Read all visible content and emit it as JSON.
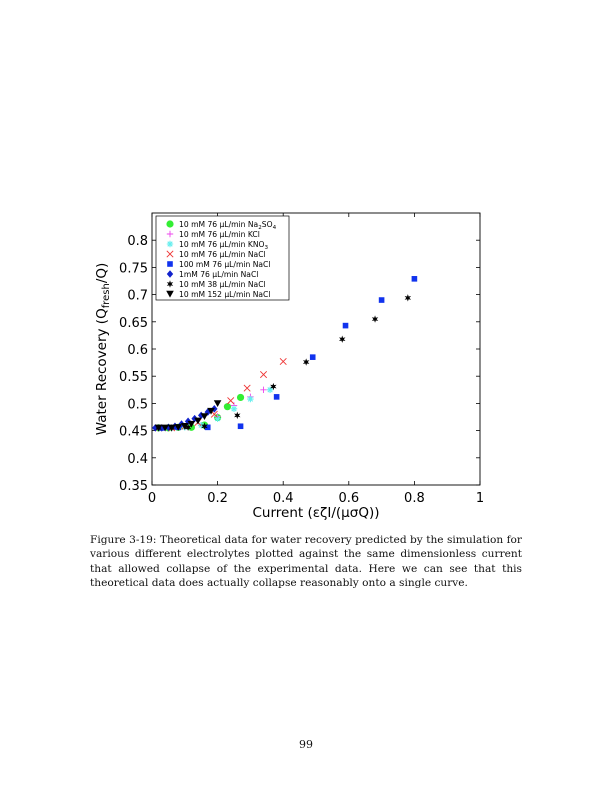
{
  "figure": {
    "caption": "Figure 3-19: Theoretical data for water recovery predicted by the simulation for various different electrolytes plotted against the same dimensionless current that allowed collapse of the experimental data. Here we can see that this theoretical data does actually collapse reasonably onto a single curve."
  },
  "page_number": "99",
  "chart_data": {
    "type": "scatter",
    "xlabel": "Current (εζI/(μσQ))",
    "ylabel_main": "Water Recovery (Q",
    "ylabel_sub": "fresh",
    "ylabel_tail": "/Q)",
    "xlim": [
      0,
      1
    ],
    "ylim": [
      0.35,
      0.85
    ],
    "x_ticks": [
      0,
      0.2,
      0.4,
      0.6,
      0.8,
      1
    ],
    "x_tick_labels": [
      "0",
      "0.2",
      "0.4",
      "0.6",
      "0.8",
      "1"
    ],
    "y_ticks": [
      0.35,
      0.4,
      0.45,
      0.5,
      0.55,
      0.6,
      0.65,
      0.7,
      0.75,
      0.8
    ],
    "y_tick_labels": [
      "0.35",
      "0.4",
      "0.45",
      "0.5",
      "0.55",
      "0.6",
      "0.65",
      "0.7",
      "0.75",
      "0.8"
    ],
    "grid": false,
    "legend_position": "top-left",
    "series": [
      {
        "name": "10 mM 76 μL/min Na2SO4",
        "label_main": "10 mM 76 μL/min Na",
        "label_sub": "2",
        "label_tail": "SO",
        "label_sub2": "4",
        "marker": "circle",
        "color": "#33ee33",
        "x": [
          0.02,
          0.05,
          0.08,
          0.12,
          0.16,
          0.2,
          0.23,
          0.27
        ],
        "y": [
          0.455,
          0.455,
          0.456,
          0.456,
          0.46,
          0.474,
          0.494,
          0.511
        ]
      },
      {
        "name": "10 mM 76 μL/min KCl",
        "label_main": "10 mM 76 μL/min KCl",
        "marker": "plus",
        "color": "#ee44ee",
        "x": [
          0.02,
          0.06,
          0.1,
          0.15,
          0.2,
          0.25,
          0.3,
          0.34
        ],
        "y": [
          0.455,
          0.455,
          0.457,
          0.46,
          0.476,
          0.496,
          0.512,
          0.525
        ]
      },
      {
        "name": "10 mM 76 μL/min KNO3",
        "label_main": "10 mM 76 μL/min KNO",
        "label_sub": "3",
        "marker": "asterisk",
        "color": "#66eeee",
        "x": [
          0.02,
          0.06,
          0.1,
          0.15,
          0.2,
          0.25,
          0.3,
          0.36
        ],
        "y": [
          0.455,
          0.455,
          0.456,
          0.46,
          0.472,
          0.49,
          0.508,
          0.525
        ]
      },
      {
        "name": "10 mM 76 μL/min NaCl",
        "label_main": "10 mM 76 μL/min NaCl",
        "marker": "x",
        "color": "#ee3333",
        "x": [
          0.02,
          0.06,
          0.1,
          0.14,
          0.19,
          0.24,
          0.29,
          0.34,
          0.4
        ],
        "y": [
          0.455,
          0.455,
          0.458,
          0.465,
          0.48,
          0.505,
          0.528,
          0.553,
          0.577
        ]
      },
      {
        "name": "100 mM 76 μL/min NaCl",
        "label_main": "100 mM 76 μL/min NaCl",
        "marker": "square",
        "color": "#1133ee",
        "x": [
          0.03,
          0.08,
          0.17,
          0.27,
          0.38,
          0.49,
          0.59,
          0.7,
          0.8
        ],
        "y": [
          0.455,
          0.456,
          0.456,
          0.458,
          0.512,
          0.585,
          0.643,
          0.69,
          0.729
        ]
      },
      {
        "name": "1mM 76 μL/min NaCl",
        "label_main": "1mM 76 μL/min NaCl",
        "marker": "diamond",
        "color": "#1122cc",
        "x": [
          0.01,
          0.03,
          0.05,
          0.07,
          0.09,
          0.11,
          0.13,
          0.15,
          0.17,
          0.19
        ],
        "y": [
          0.455,
          0.455,
          0.456,
          0.458,
          0.462,
          0.467,
          0.472,
          0.478,
          0.484,
          0.49
        ]
      },
      {
        "name": "10 mM 38 μL/min NaCl",
        "label_main": "10 mM 38 μL/min NaCl",
        "marker": "star",
        "color": "#000000",
        "x": [
          0.02,
          0.06,
          0.11,
          0.16,
          0.26,
          0.37,
          0.47,
          0.58,
          0.68,
          0.78
        ],
        "y": [
          0.455,
          0.455,
          0.456,
          0.458,
          0.478,
          0.531,
          0.576,
          0.618,
          0.655,
          0.694
        ]
      },
      {
        "name": "10 mM 152 μL/min NaCl",
        "label_main": "10 mM 152 μL/min NaCl",
        "marker": "triangle-down",
        "color": "#000000",
        "x": [
          0.02,
          0.04,
          0.06,
          0.08,
          0.1,
          0.12,
          0.14,
          0.16,
          0.18,
          0.2
        ],
        "y": [
          0.455,
          0.455,
          0.455,
          0.456,
          0.458,
          0.462,
          0.468,
          0.476,
          0.486,
          0.5
        ]
      }
    ]
  }
}
